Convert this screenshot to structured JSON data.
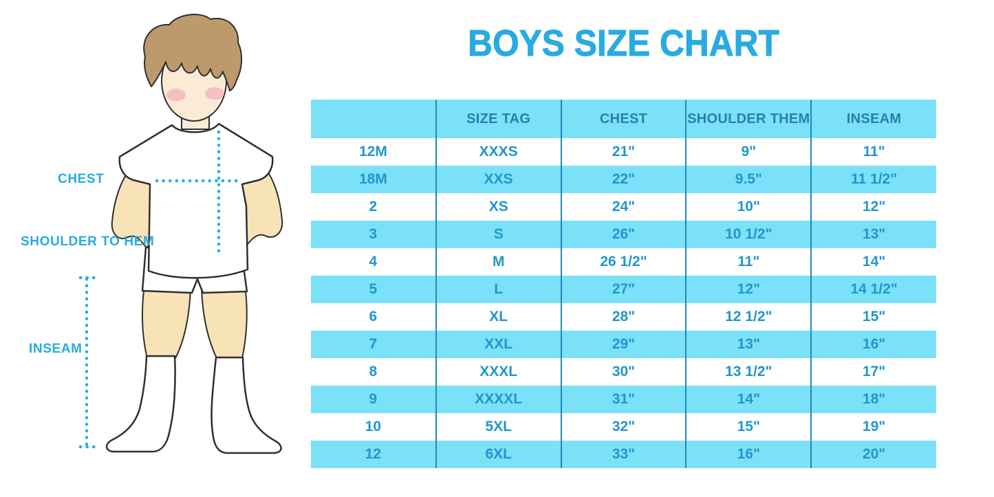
{
  "title": "BOYS SIZE CHART",
  "colors": {
    "background": "#FFFFFF",
    "accent": "#29ABE2",
    "table_fill": "#7AE1F8",
    "divider": "#1F87B8",
    "header_text": "#2A7FA9",
    "cell_text": "#2196CE"
  },
  "figure": {
    "description": "Cartoon boy in white t-shirt, shorts and knee socks with dotted measurement guides",
    "labels": {
      "chest": "CHEST",
      "shoulder_to_hem": "SHOULDER TO HEM",
      "inseam": "INSEAM"
    },
    "colors": {
      "skin": "#F8E3B7",
      "face": "#FBEBD5",
      "hair": "#BC9A6C",
      "blush": "#F2A9B8",
      "outline": "#2F2F2F",
      "garment": "#FFFFFF"
    }
  },
  "chart_data": {
    "type": "table",
    "title": "BOYS SIZE CHART",
    "columns": [
      "",
      "SIZE TAG",
      "CHEST",
      "SHOULDER THEM",
      "INSEAM"
    ],
    "rows": [
      [
        "12M",
        "XXXS",
        "21\"",
        "9\"",
        "11\""
      ],
      [
        "18M",
        "XXS",
        "22\"",
        "9.5\"",
        "11 1/2\""
      ],
      [
        "2",
        "XS",
        "24\"",
        "10\"",
        "12\""
      ],
      [
        "3",
        "S",
        "26\"",
        "10 1/2\"",
        "13\""
      ],
      [
        "4",
        "M",
        "26 1/2\"",
        "11\"",
        "14\""
      ],
      [
        "5",
        "L",
        "27\"",
        "12\"",
        "14 1/2\""
      ],
      [
        "6",
        "XL",
        "28\"",
        "12 1/2\"",
        "15\""
      ],
      [
        "7",
        "XXL",
        "29\"",
        "13\"",
        "16\""
      ],
      [
        "8",
        "XXXL",
        "30\"",
        "13 1/2\"",
        "17\""
      ],
      [
        "9",
        "XXXXL",
        "31\"",
        "14\"",
        "18\""
      ],
      [
        "10",
        "5XL",
        "32\"",
        "15\"",
        "19\""
      ],
      [
        "12",
        "6XL",
        "33\"",
        "16\"",
        "20\""
      ]
    ],
    "layout": {
      "legend": "none",
      "grid": "vertical dividers only",
      "striping": "header and even data rows cyan, odd data rows white",
      "units": "inches"
    }
  }
}
